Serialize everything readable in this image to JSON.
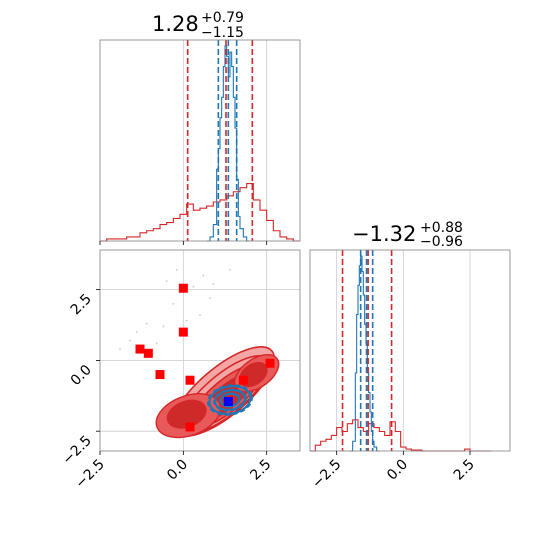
{
  "chart_data": {
    "type": "scatter",
    "panels": {
      "x_marginal": {
        "title": {
          "value": "1.28",
          "plus": "+0.79",
          "minus": "−1.15"
        },
        "xlim": [
          -2.5,
          3.5
        ],
        "red_quantiles": [
          0.13,
          1.28,
          2.07
        ],
        "blue_quantiles": [
          1.05,
          1.35,
          1.6
        ],
        "red_hist": {
          "edges": [
            -2.5,
            -2.3,
            -2.1,
            -1.9,
            -1.7,
            -1.5,
            -1.3,
            -1.1,
            -0.9,
            -0.7,
            -0.5,
            -0.3,
            -0.1,
            0.1,
            0.3,
            0.5,
            0.7,
            0.9,
            1.1,
            1.3,
            1.5,
            1.7,
            1.9,
            2.1,
            2.3,
            2.5,
            2.7,
            2.9,
            3.1,
            3.3,
            3.5
          ],
          "values": [
            0,
            0.01,
            0.01,
            0.01,
            0.02,
            0.02,
            0.04,
            0.05,
            0.06,
            0.08,
            0.09,
            0.11,
            0.13,
            0.18,
            0.15,
            0.16,
            0.17,
            0.19,
            0.2,
            0.22,
            0.24,
            0.26,
            0.28,
            0.2,
            0.15,
            0.1,
            0.05,
            0.02,
            0.01,
            0
          ]
        },
        "blue_hist": {
          "edges": [
            0.7,
            0.8,
            0.9,
            1.0,
            1.05,
            1.1,
            1.15,
            1.2,
            1.25,
            1.3,
            1.35,
            1.4,
            1.45,
            1.5,
            1.55,
            1.6,
            1.65,
            1.7,
            1.8,
            1.9,
            2.0
          ],
          "values": [
            0,
            0.02,
            0.08,
            0.35,
            0.45,
            0.6,
            0.7,
            0.85,
            0.95,
            0.9,
            0.8,
            0.92,
            0.85,
            0.7,
            0.55,
            0.3,
            0.12,
            0.06,
            0.02,
            0
          ]
        }
      },
      "y_marginal": {
        "title": {
          "value": "−1.32",
          "plus": "+0.88",
          "minus": "−0.96"
        },
        "xlim": [
          -3.5,
          4.0
        ],
        "red_quantiles": [
          -2.28,
          -1.32,
          -0.44
        ],
        "blue_quantiles": [
          -1.6,
          -1.38,
          -1.15
        ],
        "red_hist": {
          "edges": [
            -3.5,
            -3.3,
            -3.1,
            -2.9,
            -2.7,
            -2.5,
            -2.3,
            -2.1,
            -1.9,
            -1.7,
            -1.5,
            -1.3,
            -1.1,
            -0.9,
            -0.7,
            -0.5,
            -0.3,
            -0.1,
            0.1,
            0.3,
            0.5,
            0.7,
            0.9,
            1.1,
            1.3,
            1.5,
            1.7,
            1.9,
            2.1,
            2.3,
            2.5,
            2.7,
            2.9,
            3.1,
            3.3
          ],
          "values": [
            0,
            0.03,
            0.05,
            0.06,
            0.08,
            0.12,
            0.1,
            0.14,
            0.16,
            0.12,
            0.1,
            0.14,
            0.12,
            0.1,
            0.08,
            0.15,
            0.1,
            0.02,
            0.01,
            0.005,
            0.005,
            0,
            0,
            0,
            0,
            0,
            0,
            0,
            0,
            0.01,
            0,
            0,
            0,
            0
          ]
        },
        "blue_hist": {
          "edges": [
            -2.0,
            -1.9,
            -1.8,
            -1.75,
            -1.7,
            -1.65,
            -1.6,
            -1.55,
            -1.5,
            -1.45,
            -1.4,
            -1.35,
            -1.3,
            -1.25,
            -1.2,
            -1.15,
            -1.1,
            -1.0,
            -0.9
          ],
          "values": [
            0,
            0.05,
            0.4,
            0.7,
            0.85,
            0.95,
            1.0,
            0.92,
            0.8,
            0.65,
            0.55,
            0.4,
            0.3,
            0.2,
            0.1,
            0.05,
            0.02,
            0
          ]
        }
      },
      "joint": {
        "xlim": [
          -2.5,
          3.5
        ],
        "ylim": [
          -3.2,
          3.9
        ],
        "red_squares": [
          {
            "x": 0.0,
            "y": 2.55
          },
          {
            "x": 0.0,
            "y": 1.0
          },
          {
            "x": -1.3,
            "y": 0.4
          },
          {
            "x": -1.05,
            "y": 0.25
          },
          {
            "x": -0.7,
            "y": -0.5
          },
          {
            "x": 0.2,
            "y": -0.7
          },
          {
            "x": 1.8,
            "y": -0.7
          },
          {
            "x": 2.6,
            "y": -0.1
          },
          {
            "x": 0.2,
            "y": -2.35
          }
        ],
        "blue_square": {
          "x": 1.35,
          "y": -1.45
        },
        "faint_points": [
          {
            "x": -0.2,
            "y": 3.2
          },
          {
            "x": 0.6,
            "y": 3.0
          },
          {
            "x": -0.5,
            "y": 2.8
          },
          {
            "x": 1.4,
            "y": 3.2
          },
          {
            "x": 0.8,
            "y": 2.2
          },
          {
            "x": -0.3,
            "y": 2.0
          },
          {
            "x": 0.5,
            "y": 1.6
          },
          {
            "x": -1.6,
            "y": 0.7
          },
          {
            "x": -1.4,
            "y": 1.0
          },
          {
            "x": -1.9,
            "y": 0.4
          },
          {
            "x": -0.6,
            "y": 1.2
          },
          {
            "x": 0.3,
            "y": 2.6
          },
          {
            "x": 0.9,
            "y": 2.7
          },
          {
            "x": -0.8,
            "y": 0.6
          },
          {
            "x": -1.1,
            "y": 1.3
          },
          {
            "x": 0.1,
            "y": 1.4
          }
        ],
        "red_levels": [
          {
            "cx": 1.2,
            "cy": -1.1,
            "sx": 1.9,
            "sy": 0.85,
            "angle": 40
          },
          {
            "cx": 1.25,
            "cy": -1.2,
            "sx": 1.65,
            "sy": 0.7,
            "angle": 40
          },
          {
            "cx": 1.3,
            "cy": -1.25,
            "sx": 1.35,
            "sy": 0.55,
            "angle": 40
          },
          {
            "cx": 1.3,
            "cy": -1.3,
            "sx": 0.95,
            "sy": 0.4,
            "angle": 40
          }
        ],
        "red_lobes": [
          {
            "cx": 0.15,
            "cy": -1.95,
            "sx": 1.0,
            "sy": 0.7,
            "angle": 20
          },
          {
            "cx": 2.2,
            "cy": -0.45,
            "sx": 0.75,
            "sy": 0.5,
            "angle": 35
          },
          {
            "cx": 0.1,
            "cy": -1.9,
            "sx": 0.6,
            "sy": 0.45,
            "angle": 20
          },
          {
            "cx": 2.1,
            "cy": -0.5,
            "sx": 0.45,
            "sy": 0.35,
            "angle": 35
          }
        ],
        "blue_levels": [
          {
            "cx": 1.4,
            "cy": -1.4,
            "sx": 0.62,
            "sy": 0.48,
            "angle": 10
          },
          {
            "cx": 1.4,
            "cy": -1.4,
            "sx": 0.45,
            "sy": 0.34,
            "angle": 10
          },
          {
            "cx": 1.4,
            "cy": -1.4,
            "sx": 0.28,
            "sy": 0.22,
            "angle": 10
          }
        ]
      }
    },
    "x_ticks": [
      "−2.5",
      "0.0",
      "2.5"
    ],
    "y_ticks": [
      "2.5",
      "0.0",
      "−2.5"
    ],
    "x2_ticks": [
      "−2.5",
      "0.0",
      "2.5"
    ],
    "tick_values": {
      "x": [
        -2.5,
        0.0,
        2.5
      ],
      "y": [
        2.5,
        0.0,
        -2.5
      ],
      "x2": [
        -2.5,
        0.0,
        2.5
      ]
    },
    "colors": {
      "red": "#d62728",
      "red_fill_light": "#f4a6a4",
      "red_fill_mid": "#e8595a",
      "red_fill_dark": "#cf2a2a",
      "blue": "#1f77b4",
      "marker_red": "#ff0000",
      "marker_blue": "#0000ff",
      "grid": "#cccccc",
      "frame": "#808080"
    }
  }
}
